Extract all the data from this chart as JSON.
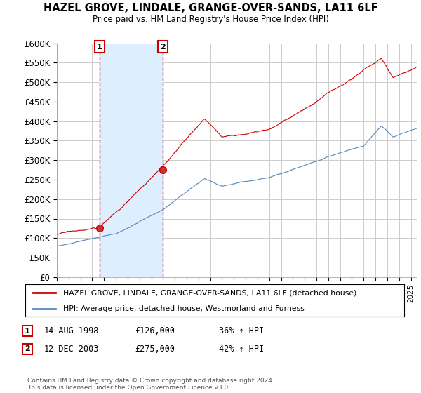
{
  "title": "HAZEL GROVE, LINDALE, GRANGE-OVER-SANDS, LA11 6LF",
  "subtitle": "Price paid vs. HM Land Registry's House Price Index (HPI)",
  "ylabel_ticks": [
    "£0",
    "£50K",
    "£100K",
    "£150K",
    "£200K",
    "£250K",
    "£300K",
    "£350K",
    "£400K",
    "£450K",
    "£500K",
    "£550K",
    "£600K"
  ],
  "ylim": [
    0,
    600000
  ],
  "ytick_vals": [
    0,
    50000,
    100000,
    150000,
    200000,
    250000,
    300000,
    350000,
    400000,
    450000,
    500000,
    550000,
    600000
  ],
  "sale1": {
    "date_num": 1998.62,
    "price": 126000,
    "label": "1",
    "date_str": "14-AUG-1998",
    "pct": "36% ↑ HPI"
  },
  "sale2": {
    "date_num": 2003.95,
    "price": 275000,
    "label": "2",
    "date_str": "12-DEC-2003",
    "pct": "42% ↑ HPI"
  },
  "legend_red": "HAZEL GROVE, LINDALE, GRANGE-OVER-SANDS, LA11 6LF (detached house)",
  "legend_blue": "HPI: Average price, detached house, Westmorland and Furness",
  "table_rows": [
    {
      "num": "1",
      "date": "14-AUG-1998",
      "price": "£126,000",
      "pct": "36% ↑ HPI"
    },
    {
      "num": "2",
      "date": "12-DEC-2003",
      "price": "£275,000",
      "pct": "42% ↑ HPI"
    }
  ],
  "footnote": "Contains HM Land Registry data © Crown copyright and database right 2024.\nThis data is licensed under the Open Government Licence v3.0.",
  "bg_color": "#ffffff",
  "plot_bg_color": "#ffffff",
  "grid_color": "#cccccc",
  "red_color": "#cc0000",
  "blue_color": "#5588bb",
  "shade_color": "#ddeeff",
  "xmin": 1995.0,
  "xmax": 2025.5
}
